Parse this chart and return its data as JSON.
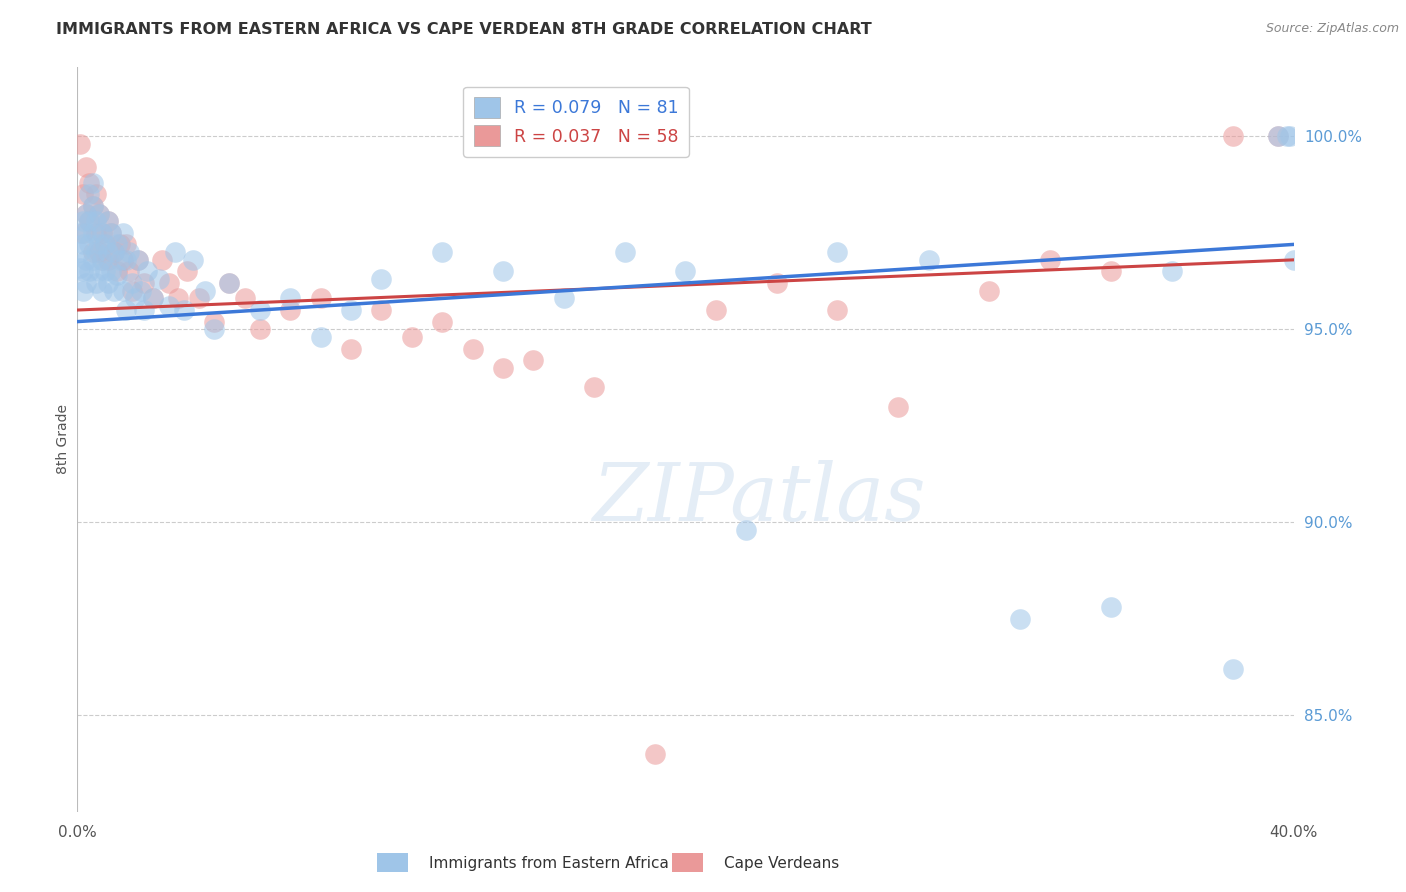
{
  "title": "IMMIGRANTS FROM EASTERN AFRICA VS CAPE VERDEAN 8TH GRADE CORRELATION CHART",
  "source": "Source: ZipAtlas.com",
  "ylabel": "8th Grade",
  "y_ticks": [
    0.85,
    0.9,
    0.95,
    1.0
  ],
  "y_tick_labels": [
    "85.0%",
    "90.0%",
    "95.0%",
    "100.0%"
  ],
  "x_min": 0.0,
  "x_max": 0.4,
  "y_min": 0.825,
  "y_max": 1.018,
  "blue_R": 0.079,
  "blue_N": 81,
  "pink_R": 0.037,
  "pink_N": 58,
  "blue_color": "#9fc5e8",
  "pink_color": "#ea9999",
  "blue_line_color": "#3c78d8",
  "pink_line_color": "#cc4444",
  "legend_label_blue": "Immigrants from Eastern Africa",
  "legend_label_pink": "Cape Verdeans",
  "watermark": "ZIPatlas",
  "blue_trend_x0": 0.0,
  "blue_trend_y0": 0.952,
  "blue_trend_x1": 0.4,
  "blue_trend_y1": 0.972,
  "pink_trend_x0": 0.0,
  "pink_trend_y0": 0.955,
  "pink_trend_x1": 0.4,
  "pink_trend_y1": 0.968,
  "blue_scatter_x": [
    0.001,
    0.001,
    0.001,
    0.002,
    0.002,
    0.002,
    0.002,
    0.003,
    0.003,
    0.003,
    0.003,
    0.004,
    0.004,
    0.004,
    0.004,
    0.005,
    0.005,
    0.005,
    0.005,
    0.006,
    0.006,
    0.006,
    0.007,
    0.007,
    0.007,
    0.008,
    0.008,
    0.008,
    0.009,
    0.009,
    0.01,
    0.01,
    0.01,
    0.011,
    0.011,
    0.012,
    0.012,
    0.013,
    0.013,
    0.014,
    0.015,
    0.015,
    0.016,
    0.016,
    0.017,
    0.018,
    0.019,
    0.02,
    0.021,
    0.022,
    0.023,
    0.025,
    0.027,
    0.03,
    0.032,
    0.035,
    0.038,
    0.042,
    0.045,
    0.05,
    0.06,
    0.07,
    0.08,
    0.09,
    0.1,
    0.12,
    0.14,
    0.16,
    0.18,
    0.2,
    0.22,
    0.25,
    0.28,
    0.31,
    0.34,
    0.36,
    0.38,
    0.395,
    0.398,
    0.399,
    0.4
  ],
  "blue_scatter_y": [
    0.975,
    0.97,
    0.966,
    0.978,
    0.972,
    0.965,
    0.96,
    0.98,
    0.975,
    0.968,
    0.962,
    0.985,
    0.978,
    0.972,
    0.965,
    0.988,
    0.982,
    0.975,
    0.968,
    0.978,
    0.97,
    0.962,
    0.98,
    0.972,
    0.965,
    0.975,
    0.968,
    0.96,
    0.972,
    0.965,
    0.978,
    0.97,
    0.962,
    0.975,
    0.965,
    0.97,
    0.96,
    0.972,
    0.964,
    0.968,
    0.975,
    0.96,
    0.968,
    0.955,
    0.97,
    0.962,
    0.958,
    0.968,
    0.96,
    0.955,
    0.965,
    0.958,
    0.963,
    0.956,
    0.97,
    0.955,
    0.968,
    0.96,
    0.95,
    0.962,
    0.955,
    0.958,
    0.948,
    0.955,
    0.963,
    0.97,
    0.965,
    0.958,
    0.97,
    0.965,
    0.898,
    0.97,
    0.968,
    0.875,
    0.878,
    0.965,
    0.862,
    1.0,
    1.0,
    1.0,
    0.968
  ],
  "pink_scatter_x": [
    0.001,
    0.002,
    0.002,
    0.003,
    0.003,
    0.004,
    0.004,
    0.005,
    0.005,
    0.006,
    0.006,
    0.007,
    0.007,
    0.008,
    0.008,
    0.009,
    0.01,
    0.01,
    0.011,
    0.012,
    0.013,
    0.014,
    0.015,
    0.016,
    0.017,
    0.018,
    0.02,
    0.022,
    0.025,
    0.028,
    0.03,
    0.033,
    0.036,
    0.04,
    0.045,
    0.05,
    0.055,
    0.06,
    0.07,
    0.08,
    0.09,
    0.1,
    0.11,
    0.12,
    0.13,
    0.14,
    0.15,
    0.17,
    0.19,
    0.21,
    0.23,
    0.25,
    0.27,
    0.3,
    0.32,
    0.34,
    0.38,
    0.395
  ],
  "pink_scatter_y": [
    0.998,
    0.985,
    0.975,
    0.992,
    0.98,
    0.988,
    0.978,
    0.982,
    0.97,
    0.985,
    0.975,
    0.98,
    0.97,
    0.975,
    0.968,
    0.972,
    0.978,
    0.968,
    0.975,
    0.97,
    0.965,
    0.972,
    0.968,
    0.972,
    0.965,
    0.96,
    0.968,
    0.962,
    0.958,
    0.968,
    0.962,
    0.958,
    0.965,
    0.958,
    0.952,
    0.962,
    0.958,
    0.95,
    0.955,
    0.958,
    0.945,
    0.955,
    0.948,
    0.952,
    0.945,
    0.94,
    0.942,
    0.935,
    0.84,
    0.955,
    0.962,
    0.955,
    0.93,
    0.96,
    0.968,
    0.965,
    1.0,
    1.0
  ]
}
